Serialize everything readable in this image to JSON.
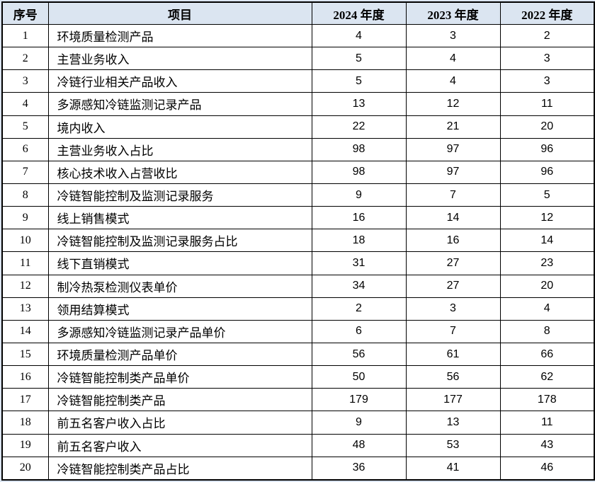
{
  "chart_data": {
    "type": "table",
    "columns": [
      {
        "key": "index",
        "label": "序号"
      },
      {
        "key": "item",
        "label": "项目"
      },
      {
        "key": "y2024",
        "label": "2024 年度"
      },
      {
        "key": "y2023",
        "label": "2023 年度"
      },
      {
        "key": "y2022",
        "label": "2022 年度"
      }
    ],
    "rows": [
      {
        "index": "1",
        "item": "环境质量检测产品",
        "y2024": "4",
        "y2023": "3",
        "y2022": "2"
      },
      {
        "index": "2",
        "item": "主营业务收入",
        "y2024": "5",
        "y2023": "4",
        "y2022": "3"
      },
      {
        "index": "3",
        "item": "冷链行业相关产品收入",
        "y2024": "5",
        "y2023": "4",
        "y2022": "3"
      },
      {
        "index": "4",
        "item": "多源感知冷链监测记录产品",
        "y2024": "13",
        "y2023": "12",
        "y2022": "11"
      },
      {
        "index": "5",
        "item": "境内收入",
        "y2024": "22",
        "y2023": "21",
        "y2022": "20"
      },
      {
        "index": "6",
        "item": "主营业务收入占比",
        "y2024": "98",
        "y2023": "97",
        "y2022": "96"
      },
      {
        "index": "7",
        "item": "核心技术收入占营收比",
        "y2024": "98",
        "y2023": "97",
        "y2022": "96"
      },
      {
        "index": "8",
        "item": "冷链智能控制及监测记录服务",
        "y2024": "9",
        "y2023": "7",
        "y2022": "5"
      },
      {
        "index": "9",
        "item": "线上销售模式",
        "y2024": "16",
        "y2023": "14",
        "y2022": "12"
      },
      {
        "index": "10",
        "item": "冷链智能控制及监测记录服务占比",
        "y2024": "18",
        "y2023": "16",
        "y2022": "14"
      },
      {
        "index": "11",
        "item": "线下直销模式",
        "y2024": "31",
        "y2023": "27",
        "y2022": "23"
      },
      {
        "index": "12",
        "item": "制冷热泵检测仪表单价",
        "y2024": "34",
        "y2023": "27",
        "y2022": "20"
      },
      {
        "index": "13",
        "item": "领用结算模式",
        "y2024": "2",
        "y2023": "3",
        "y2022": "4"
      },
      {
        "index": "14",
        "item": "多源感知冷链监测记录产品单价",
        "y2024": "6",
        "y2023": "7",
        "y2022": "8"
      },
      {
        "index": "15",
        "item": "环境质量检测产品单价",
        "y2024": "56",
        "y2023": "61",
        "y2022": "66"
      },
      {
        "index": "16",
        "item": "冷链智能控制类产品单价",
        "y2024": "50",
        "y2023": "56",
        "y2022": "62"
      },
      {
        "index": "17",
        "item": "冷链智能控制类产品",
        "y2024": "179",
        "y2023": "177",
        "y2022": "178"
      },
      {
        "index": "18",
        "item": "前五名客户收入占比",
        "y2024": "9",
        "y2023": "13",
        "y2022": "11"
      },
      {
        "index": "19",
        "item": "前五名客户收入",
        "y2024": "48",
        "y2023": "53",
        "y2022": "43"
      },
      {
        "index": "20",
        "item": "冷链智能控制类产品占比",
        "y2024": "36",
        "y2023": "41",
        "y2022": "46"
      }
    ],
    "layout": {
      "grid": "on",
      "header_position": "top"
    },
    "colors": {
      "page_background": "#dbe5f1",
      "header_background": "#dbe5f1",
      "cell_background": "#ffffff",
      "border": "#000000",
      "text": "#000000"
    }
  }
}
